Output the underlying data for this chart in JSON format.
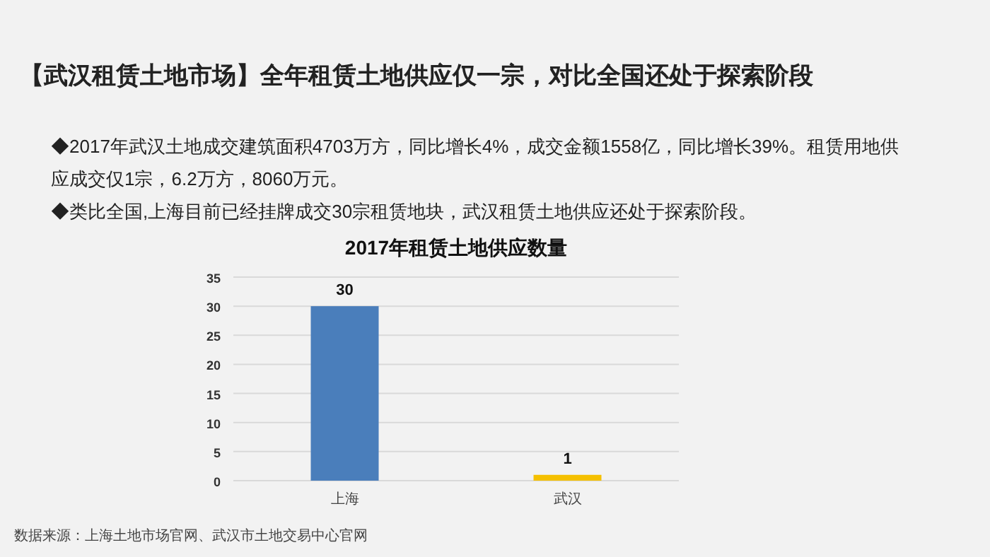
{
  "chart_data": {
    "type": "bar",
    "title": "2017年租赁土地供应数量",
    "categories": [
      "上海",
      "武汉"
    ],
    "values": [
      30,
      1
    ],
    "colors": [
      "#4a7ebb",
      "#f5c000"
    ],
    "ylim": [
      0,
      35
    ],
    "yticks": [
      0,
      5,
      10,
      15,
      20,
      25,
      30,
      35
    ],
    "grid": "y",
    "data_labels": true,
    "annotations": [
      "【武汉租赁土地市场】全年租赁土地供应仅一宗，对比全国还处于探索阶段",
      "◆2017年武汉土地成交建筑面积4703万方，同比增长4%，成交金额1558亿，同比增长39%。租赁用地供应成交仅1宗，6.2万方，8060万元。",
      "◆类比全国,上海目前已经挂牌成交30宗租赁地块，武汉租赁土地供应还处于探索阶段。",
      "数据来源：上海土地市场官网、武汉市土地交易中心官网"
    ]
  }
}
